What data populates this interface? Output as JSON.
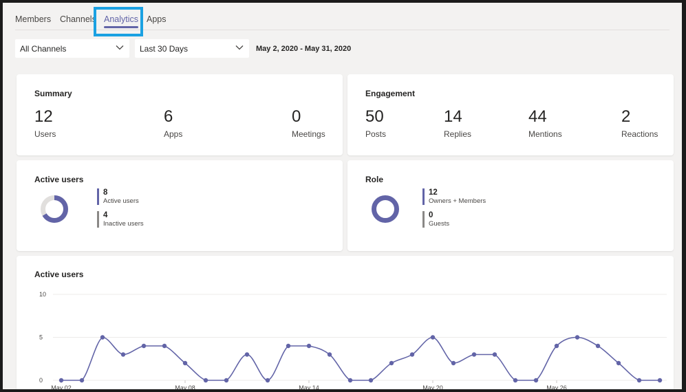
{
  "tabs": [
    {
      "label": "Members",
      "active": false
    },
    {
      "label": "Channels",
      "active": false
    },
    {
      "label": "Analytics",
      "active": true
    },
    {
      "label": "Apps",
      "active": false
    }
  ],
  "filters": {
    "channel": "All Channels",
    "period": "Last 30 Days",
    "date_range": "May 2, 2020 - May 31, 2020"
  },
  "summary": {
    "title": "Summary",
    "stats": [
      {
        "value": "12",
        "label": "Users"
      },
      {
        "value": "6",
        "label": "Apps"
      },
      {
        "value": "0",
        "label": "Meetings"
      }
    ]
  },
  "engagement": {
    "title": "Engagement",
    "stats": [
      {
        "value": "50",
        "label": "Posts"
      },
      {
        "value": "14",
        "label": "Replies"
      },
      {
        "value": "44",
        "label": "Mentions"
      },
      {
        "value": "2",
        "label": "Reactions"
      }
    ]
  },
  "active_users_card": {
    "title": "Active users",
    "items": [
      {
        "value": "8",
        "label": "Active users",
        "color": "#6264a7"
      },
      {
        "value": "4",
        "label": "Inactive users",
        "color": "#8a8886"
      }
    ]
  },
  "role_card": {
    "title": "Role",
    "items": [
      {
        "value": "12",
        "label": "Owners + Members",
        "color": "#6264a7"
      },
      {
        "value": "0",
        "label": "Guests",
        "color": "#8a8886"
      }
    ]
  },
  "colors": {
    "accent": "#6264a7",
    "inactive": "#e1dfdd",
    "highlight": "#1ba1e2"
  },
  "chart_data": {
    "type": "line",
    "title": "Active users",
    "xlabel": "",
    "ylabel": "",
    "ylim": [
      0,
      10
    ],
    "yticks": [
      "0",
      "5",
      "10"
    ],
    "grid": true,
    "x": [
      "May 02",
      "May 03",
      "May 04",
      "May 05",
      "May 06",
      "May 07",
      "May 08",
      "May 09",
      "May 10",
      "May 11",
      "May 12",
      "May 13",
      "May 14",
      "May 15",
      "May 16",
      "May 17",
      "May 18",
      "May 19",
      "May 20",
      "May 21",
      "May 22",
      "May 23",
      "May 24",
      "May 25",
      "May 26",
      "May 27",
      "May 28",
      "May 29",
      "May 30",
      "May 31"
    ],
    "xtick_labels": [
      "May 02",
      "May 08",
      "May 14",
      "May 20",
      "May 26"
    ],
    "series": [
      {
        "values": [
          0,
          0,
          5,
          3,
          4,
          4,
          2,
          0,
          0,
          3,
          0,
          4,
          4,
          3,
          0,
          0,
          2,
          3,
          5,
          2,
          3,
          3,
          0,
          0,
          4,
          5,
          4,
          2,
          0,
          0
        ]
      }
    ]
  }
}
